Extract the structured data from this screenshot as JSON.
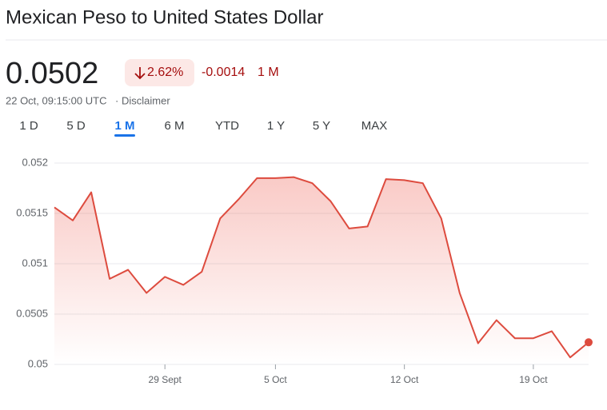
{
  "header": {
    "title": "Mexican Peso to United States Dollar",
    "price": "0.0502",
    "change_percent": "2.62%",
    "change_value": "-0.0014",
    "change_period": "1 M",
    "timestamp": "22 Oct, 09:15:00 UTC",
    "separator": "·",
    "disclaimer": "Disclaimer"
  },
  "tabs": {
    "labels": [
      "1 D",
      "5 D",
      "1 M",
      "6 M",
      "YTD",
      "1 Y",
      "5 Y",
      "MAX"
    ],
    "selected": 2
  },
  "chart_data": {
    "type": "area",
    "color": "#dd4b3e",
    "categories": [
      null,
      null,
      null,
      null,
      null,
      null,
      "29 Sept",
      null,
      null,
      null,
      null,
      null,
      "5 Oct",
      null,
      null,
      null,
      null,
      null,
      null,
      "12 Oct",
      null,
      null,
      null,
      null,
      null,
      null,
      "19 Oct",
      null,
      null,
      null
    ],
    "values": [
      0.05156,
      0.05143,
      0.05171,
      0.05085,
      0.05094,
      0.05071,
      0.05087,
      0.05079,
      0.05092,
      0.05145,
      0.05164,
      0.05185,
      0.05185,
      0.05186,
      0.0518,
      0.05162,
      0.05135,
      0.05137,
      0.05184,
      0.05183,
      0.0518,
      0.05145,
      0.05071,
      0.05021,
      0.05044,
      0.05026,
      0.05026,
      0.05033,
      0.05007,
      0.05022
    ],
    "ylim": [
      0.05,
      0.052
    ],
    "yticks": [
      0.05,
      0.0505,
      0.051,
      0.0515,
      0.052
    ],
    "grid": true
  }
}
